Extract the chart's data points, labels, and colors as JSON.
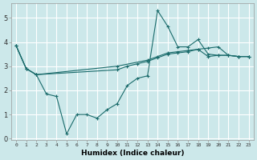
{
  "xlabel": "Humidex (Indice chaleur)",
  "background_color": "#cce8ea",
  "grid_color": "#ffffff",
  "line_color": "#1a6b6b",
  "xlim": [
    -0.5,
    23.5
  ],
  "ylim": [
    -0.05,
    5.6
  ],
  "yticks": [
    0,
    1,
    2,
    3,
    4,
    5
  ],
  "xticks": [
    0,
    1,
    2,
    3,
    4,
    5,
    6,
    7,
    8,
    9,
    10,
    11,
    12,
    13,
    14,
    15,
    16,
    17,
    18,
    19,
    20,
    21,
    22,
    23
  ],
  "series": [
    {
      "x": [
        0,
        1,
        2,
        10,
        13,
        14,
        15,
        16,
        17,
        18,
        19,
        20,
        21,
        22,
        23
      ],
      "y": [
        3.85,
        2.9,
        2.65,
        3.0,
        3.25,
        3.4,
        3.55,
        3.6,
        3.65,
        3.7,
        3.4,
        3.45,
        3.45,
        3.4,
        3.4
      ]
    },
    {
      "x": [
        0,
        1,
        2,
        10,
        11,
        12,
        13,
        14,
        15,
        16,
        17,
        18,
        19,
        20,
        21,
        22,
        23
      ],
      "y": [
        3.85,
        2.9,
        2.65,
        2.85,
        3.0,
        3.1,
        3.2,
        3.35,
        3.5,
        3.55,
        3.6,
        3.7,
        3.75,
        3.8,
        3.45,
        3.4,
        3.4
      ]
    },
    {
      "x": [
        0,
        1,
        2,
        3,
        4,
        5,
        6,
        7,
        8,
        9,
        10,
        11,
        12,
        13,
        14,
        15,
        16,
        17,
        18,
        19,
        20,
        21,
        22,
        23
      ],
      "y": [
        3.85,
        2.9,
        2.65,
        1.85,
        1.75,
        0.2,
        1.0,
        1.0,
        0.85,
        1.2,
        1.45,
        2.2,
        2.5,
        2.6,
        5.3,
        4.65,
        3.8,
        3.8,
        4.1,
        3.5,
        3.45,
        3.45,
        3.4,
        3.4
      ]
    }
  ]
}
